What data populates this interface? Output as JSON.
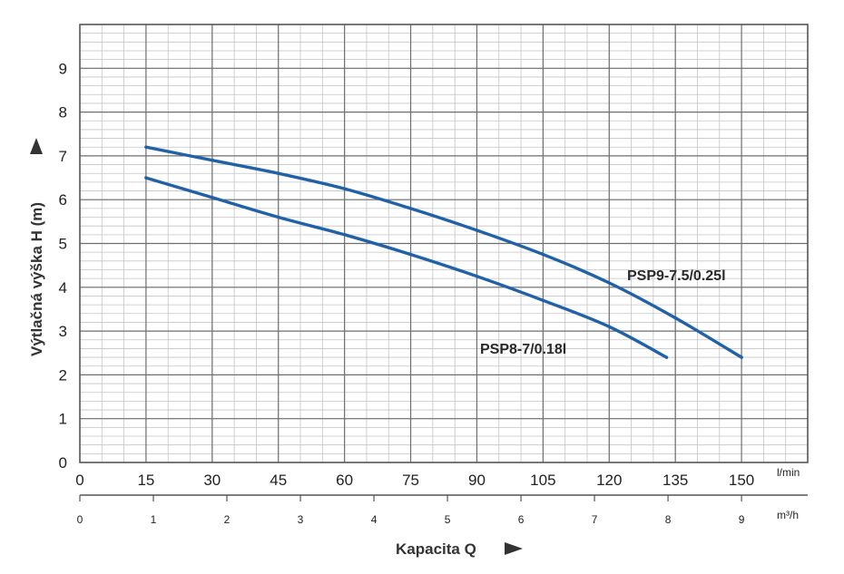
{
  "chart_data": {
    "type": "line",
    "xlabel": "Kapacita Q",
    "ylabel": "Výtlačná výška H (m)",
    "x_unit_primary": "l/min",
    "x_unit_secondary": "m³/h",
    "x_ticks_primary": [
      "0",
      "15",
      "30",
      "45",
      "60",
      "75",
      "90",
      "105",
      "120",
      "135",
      "150"
    ],
    "x_ticks_secondary": [
      "0",
      "1",
      "2",
      "3",
      "4",
      "5",
      "6",
      "7",
      "8",
      "9"
    ],
    "y_ticks": [
      "0",
      "1",
      "2",
      "3",
      "4",
      "5",
      "6",
      "7",
      "8",
      "9"
    ],
    "xlim": [
      0,
      165
    ],
    "ylim": [
      0,
      10
    ],
    "grid": true,
    "series": [
      {
        "name": "PSP9-7.5/0.25l",
        "color": "#2161a8",
        "x": [
          15,
          30,
          45,
          60,
          75,
          90,
          105,
          120,
          135,
          150
        ],
        "y": [
          7.2,
          6.9,
          6.6,
          6.25,
          5.8,
          5.3,
          4.75,
          4.1,
          3.3,
          2.4
        ]
      },
      {
        "name": "PSP8-7/0.18l",
        "color": "#2161a8",
        "x": [
          15,
          30,
          45,
          60,
          75,
          90,
          105,
          120,
          133
        ],
        "y": [
          6.5,
          6.05,
          5.6,
          5.2,
          4.75,
          4.25,
          3.7,
          3.1,
          2.4
        ]
      }
    ]
  }
}
